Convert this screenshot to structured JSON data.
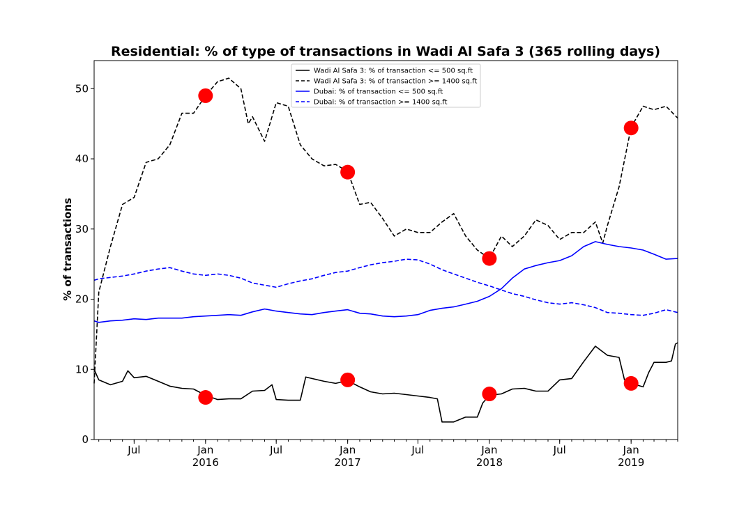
{
  "chart_data": {
    "type": "line",
    "title": "Residential: % of type of transactions in Wadi Al Safa 3 (365 rolling days)",
    "xlabel": "",
    "ylabel": "% of transactions",
    "xlim": [
      "2015-03-20",
      "2019-05-01"
    ],
    "ylim": [
      0,
      54
    ],
    "yticks": [
      0,
      10,
      20,
      30,
      40,
      50
    ],
    "xticks": [
      {
        "date": "2015-07-01",
        "label": "Jul",
        "sublabel": ""
      },
      {
        "date": "2016-01-01",
        "label": "Jan",
        "sublabel": "2016"
      },
      {
        "date": "2016-07-01",
        "label": "Jul",
        "sublabel": ""
      },
      {
        "date": "2017-01-01",
        "label": "Jan",
        "sublabel": "2017"
      },
      {
        "date": "2017-07-01",
        "label": "Jul",
        "sublabel": ""
      },
      {
        "date": "2018-01-01",
        "label": "Jan",
        "sublabel": "2018"
      },
      {
        "date": "2018-07-01",
        "label": "Jul",
        "sublabel": ""
      },
      {
        "date": "2019-01-01",
        "label": "Jan",
        "sublabel": "2019"
      }
    ],
    "grid": false,
    "legend_position": "top-center",
    "series": [
      {
        "name": "Wadi Al Safa 3: % of transaction <= 500 sq.ft",
        "color": "#000000",
        "style": "solid",
        "points": [
          [
            "2015-03-20",
            10.0
          ],
          [
            "2015-04-01",
            8.5
          ],
          [
            "2015-05-01",
            7.8
          ],
          [
            "2015-06-01",
            8.3
          ],
          [
            "2015-06-15",
            9.8
          ],
          [
            "2015-07-01",
            8.8
          ],
          [
            "2015-08-01",
            9.0
          ],
          [
            "2015-09-01",
            8.3
          ],
          [
            "2015-10-01",
            7.6
          ],
          [
            "2015-11-01",
            7.3
          ],
          [
            "2015-12-01",
            7.2
          ],
          [
            "2016-01-01",
            6.3
          ],
          [
            "2016-02-01",
            5.7
          ],
          [
            "2016-03-01",
            5.8
          ],
          [
            "2016-04-01",
            5.8
          ],
          [
            "2016-05-01",
            6.9
          ],
          [
            "2016-06-01",
            7.0
          ],
          [
            "2016-06-20",
            7.8
          ],
          [
            "2016-07-01",
            5.7
          ],
          [
            "2016-08-01",
            5.6
          ],
          [
            "2016-09-01",
            5.6
          ],
          [
            "2016-09-15",
            8.9
          ],
          [
            "2016-10-01",
            8.7
          ],
          [
            "2016-11-01",
            8.3
          ],
          [
            "2016-12-01",
            8.0
          ],
          [
            "2017-01-01",
            8.4
          ],
          [
            "2017-02-01",
            7.5
          ],
          [
            "2017-03-01",
            6.8
          ],
          [
            "2017-04-01",
            6.5
          ],
          [
            "2017-05-01",
            6.6
          ],
          [
            "2017-06-01",
            6.4
          ],
          [
            "2017-07-01",
            6.2
          ],
          [
            "2017-08-01",
            6.0
          ],
          [
            "2017-08-20",
            5.8
          ],
          [
            "2017-09-01",
            2.5
          ],
          [
            "2017-10-01",
            2.5
          ],
          [
            "2017-11-01",
            3.2
          ],
          [
            "2017-12-01",
            3.2
          ],
          [
            "2017-12-15",
            5.2
          ],
          [
            "2018-01-01",
            6.3
          ],
          [
            "2018-02-01",
            6.5
          ],
          [
            "2018-03-01",
            7.2
          ],
          [
            "2018-04-01",
            7.3
          ],
          [
            "2018-05-01",
            6.9
          ],
          [
            "2018-06-01",
            6.9
          ],
          [
            "2018-07-01",
            8.5
          ],
          [
            "2018-08-01",
            8.7
          ],
          [
            "2018-09-01",
            11.1
          ],
          [
            "2018-10-01",
            13.3
          ],
          [
            "2018-11-01",
            12.0
          ],
          [
            "2018-12-01",
            11.7
          ],
          [
            "2018-12-15",
            8.5
          ],
          [
            "2019-01-01",
            8.0
          ],
          [
            "2019-02-01",
            7.5
          ],
          [
            "2019-02-15",
            9.5
          ],
          [
            "2019-03-01",
            11.0
          ],
          [
            "2019-04-01",
            11.0
          ],
          [
            "2019-04-15",
            11.2
          ],
          [
            "2019-04-25",
            13.6
          ],
          [
            "2019-05-01",
            13.8
          ]
        ]
      },
      {
        "name": "Wadi Al Safa 3: % of transaction >= 1400 sq.ft",
        "color": "#000000",
        "style": "dashed",
        "points": [
          [
            "2015-03-20",
            8.0
          ],
          [
            "2015-04-01",
            21.0
          ],
          [
            "2015-05-01",
            27.5
          ],
          [
            "2015-06-01",
            33.5
          ],
          [
            "2015-07-01",
            34.5
          ],
          [
            "2015-08-01",
            39.5
          ],
          [
            "2015-09-01",
            40.0
          ],
          [
            "2015-10-01",
            42.0
          ],
          [
            "2015-11-01",
            46.5
          ],
          [
            "2015-12-01",
            46.5
          ],
          [
            "2016-01-01",
            49.0
          ],
          [
            "2016-02-01",
            51.0
          ],
          [
            "2016-03-01",
            51.5
          ],
          [
            "2016-04-01",
            50.0
          ],
          [
            "2016-04-20",
            45.0
          ],
          [
            "2016-05-01",
            46.0
          ],
          [
            "2016-06-01",
            42.5
          ],
          [
            "2016-07-01",
            48.0
          ],
          [
            "2016-08-01",
            47.5
          ],
          [
            "2016-09-01",
            42.0
          ],
          [
            "2016-10-01",
            40.0
          ],
          [
            "2016-11-01",
            39.0
          ],
          [
            "2016-12-01",
            39.2
          ],
          [
            "2017-01-01",
            38.2
          ],
          [
            "2017-02-01",
            33.5
          ],
          [
            "2017-03-01",
            33.8
          ],
          [
            "2017-04-01",
            31.5
          ],
          [
            "2017-05-01",
            29.0
          ],
          [
            "2017-06-01",
            30.0
          ],
          [
            "2017-07-01",
            29.5
          ],
          [
            "2017-08-01",
            29.5
          ],
          [
            "2017-09-01",
            31.0
          ],
          [
            "2017-10-01",
            32.2
          ],
          [
            "2017-11-01",
            29.0
          ],
          [
            "2017-12-01",
            27.0
          ],
          [
            "2018-01-01",
            25.8
          ],
          [
            "2018-02-01",
            29.0
          ],
          [
            "2018-03-01",
            27.5
          ],
          [
            "2018-04-01",
            29.0
          ],
          [
            "2018-05-01",
            31.3
          ],
          [
            "2018-06-01",
            30.5
          ],
          [
            "2018-07-01",
            28.5
          ],
          [
            "2018-08-01",
            29.5
          ],
          [
            "2018-09-01",
            29.5
          ],
          [
            "2018-10-01",
            31.0
          ],
          [
            "2018-10-20",
            28.0
          ],
          [
            "2018-11-01",
            30.5
          ],
          [
            "2018-12-01",
            36.0
          ],
          [
            "2019-01-01",
            44.5
          ],
          [
            "2019-02-01",
            47.5
          ],
          [
            "2019-03-01",
            47.0
          ],
          [
            "2019-04-01",
            47.5
          ],
          [
            "2019-05-01",
            45.8
          ]
        ]
      },
      {
        "name": "Dubai: % of transaction <= 500 sq.ft",
        "color": "#0000ff",
        "style": "solid",
        "points": [
          [
            "2015-03-20",
            16.9
          ],
          [
            "2015-04-01",
            16.7
          ],
          [
            "2015-05-01",
            16.9
          ],
          [
            "2015-06-01",
            17.0
          ],
          [
            "2015-07-01",
            17.2
          ],
          [
            "2015-08-01",
            17.1
          ],
          [
            "2015-09-01",
            17.3
          ],
          [
            "2015-10-01",
            17.3
          ],
          [
            "2015-11-01",
            17.3
          ],
          [
            "2015-12-01",
            17.5
          ],
          [
            "2016-01-01",
            17.6
          ],
          [
            "2016-02-01",
            17.7
          ],
          [
            "2016-03-01",
            17.8
          ],
          [
            "2016-04-01",
            17.7
          ],
          [
            "2016-05-01",
            18.2
          ],
          [
            "2016-06-01",
            18.6
          ],
          [
            "2016-07-01",
            18.3
          ],
          [
            "2016-08-01",
            18.1
          ],
          [
            "2016-09-01",
            17.9
          ],
          [
            "2016-10-01",
            17.8
          ],
          [
            "2016-11-01",
            18.1
          ],
          [
            "2016-12-01",
            18.3
          ],
          [
            "2017-01-01",
            18.5
          ],
          [
            "2017-02-01",
            18.0
          ],
          [
            "2017-03-01",
            17.9
          ],
          [
            "2017-04-01",
            17.6
          ],
          [
            "2017-05-01",
            17.5
          ],
          [
            "2017-06-01",
            17.6
          ],
          [
            "2017-07-01",
            17.8
          ],
          [
            "2017-08-01",
            18.4
          ],
          [
            "2017-09-01",
            18.7
          ],
          [
            "2017-10-01",
            18.9
          ],
          [
            "2017-11-01",
            19.3
          ],
          [
            "2017-12-01",
            19.7
          ],
          [
            "2018-01-01",
            20.4
          ],
          [
            "2018-02-01",
            21.5
          ],
          [
            "2018-03-01",
            23.0
          ],
          [
            "2018-04-01",
            24.3
          ],
          [
            "2018-05-01",
            24.8
          ],
          [
            "2018-06-01",
            25.2
          ],
          [
            "2018-07-01",
            25.5
          ],
          [
            "2018-08-01",
            26.2
          ],
          [
            "2018-09-01",
            27.5
          ],
          [
            "2018-10-01",
            28.2
          ],
          [
            "2018-11-01",
            27.8
          ],
          [
            "2018-12-01",
            27.5
          ],
          [
            "2019-01-01",
            27.3
          ],
          [
            "2019-02-01",
            27.0
          ],
          [
            "2019-03-01",
            26.4
          ],
          [
            "2019-04-01",
            25.7
          ],
          [
            "2019-05-01",
            25.8
          ]
        ]
      },
      {
        "name": "Dubai: % of transaction >= 1400 sq.ft",
        "color": "#0000ff",
        "style": "dashed",
        "points": [
          [
            "2015-03-20",
            22.7
          ],
          [
            "2015-04-01",
            22.9
          ],
          [
            "2015-05-01",
            23.1
          ],
          [
            "2015-06-01",
            23.3
          ],
          [
            "2015-07-01",
            23.6
          ],
          [
            "2015-08-01",
            24.0
          ],
          [
            "2015-09-01",
            24.3
          ],
          [
            "2015-10-01",
            24.5
          ],
          [
            "2015-11-01",
            24.0
          ],
          [
            "2015-12-01",
            23.6
          ],
          [
            "2016-01-01",
            23.4
          ],
          [
            "2016-02-01",
            23.6
          ],
          [
            "2016-03-01",
            23.4
          ],
          [
            "2016-04-01",
            23.0
          ],
          [
            "2016-05-01",
            22.3
          ],
          [
            "2016-06-01",
            22.0
          ],
          [
            "2016-07-01",
            21.7
          ],
          [
            "2016-08-01",
            22.2
          ],
          [
            "2016-09-01",
            22.6
          ],
          [
            "2016-10-01",
            22.9
          ],
          [
            "2016-11-01",
            23.4
          ],
          [
            "2016-12-01",
            23.8
          ],
          [
            "2017-01-01",
            24.0
          ],
          [
            "2017-02-01",
            24.5
          ],
          [
            "2017-03-01",
            24.9
          ],
          [
            "2017-04-01",
            25.2
          ],
          [
            "2017-05-01",
            25.4
          ],
          [
            "2017-06-01",
            25.7
          ],
          [
            "2017-07-01",
            25.6
          ],
          [
            "2017-08-01",
            25.0
          ],
          [
            "2017-09-01",
            24.2
          ],
          [
            "2017-10-01",
            23.6
          ],
          [
            "2017-11-01",
            23.0
          ],
          [
            "2017-12-01",
            22.4
          ],
          [
            "2018-01-01",
            21.9
          ],
          [
            "2018-02-01",
            21.3
          ],
          [
            "2018-03-01",
            20.8
          ],
          [
            "2018-04-01",
            20.4
          ],
          [
            "2018-05-01",
            19.9
          ],
          [
            "2018-06-01",
            19.5
          ],
          [
            "2018-07-01",
            19.3
          ],
          [
            "2018-08-01",
            19.5
          ],
          [
            "2018-09-01",
            19.2
          ],
          [
            "2018-10-01",
            18.8
          ],
          [
            "2018-11-01",
            18.1
          ],
          [
            "2018-12-01",
            18.0
          ],
          [
            "2019-01-01",
            17.8
          ],
          [
            "2019-02-01",
            17.7
          ],
          [
            "2019-03-01",
            18.0
          ],
          [
            "2019-04-01",
            18.5
          ],
          [
            "2019-05-01",
            18.1
          ]
        ]
      }
    ],
    "markers": {
      "color": "#ff0000",
      "points": [
        [
          "2016-01-01",
          49.0
        ],
        [
          "2017-01-01",
          38.1
        ],
        [
          "2018-01-01",
          25.8
        ],
        [
          "2019-01-01",
          44.4
        ],
        [
          "2016-01-01",
          6.0
        ],
        [
          "2017-01-01",
          8.5
        ],
        [
          "2018-01-01",
          6.5
        ],
        [
          "2019-01-01",
          8.0
        ]
      ]
    }
  }
}
